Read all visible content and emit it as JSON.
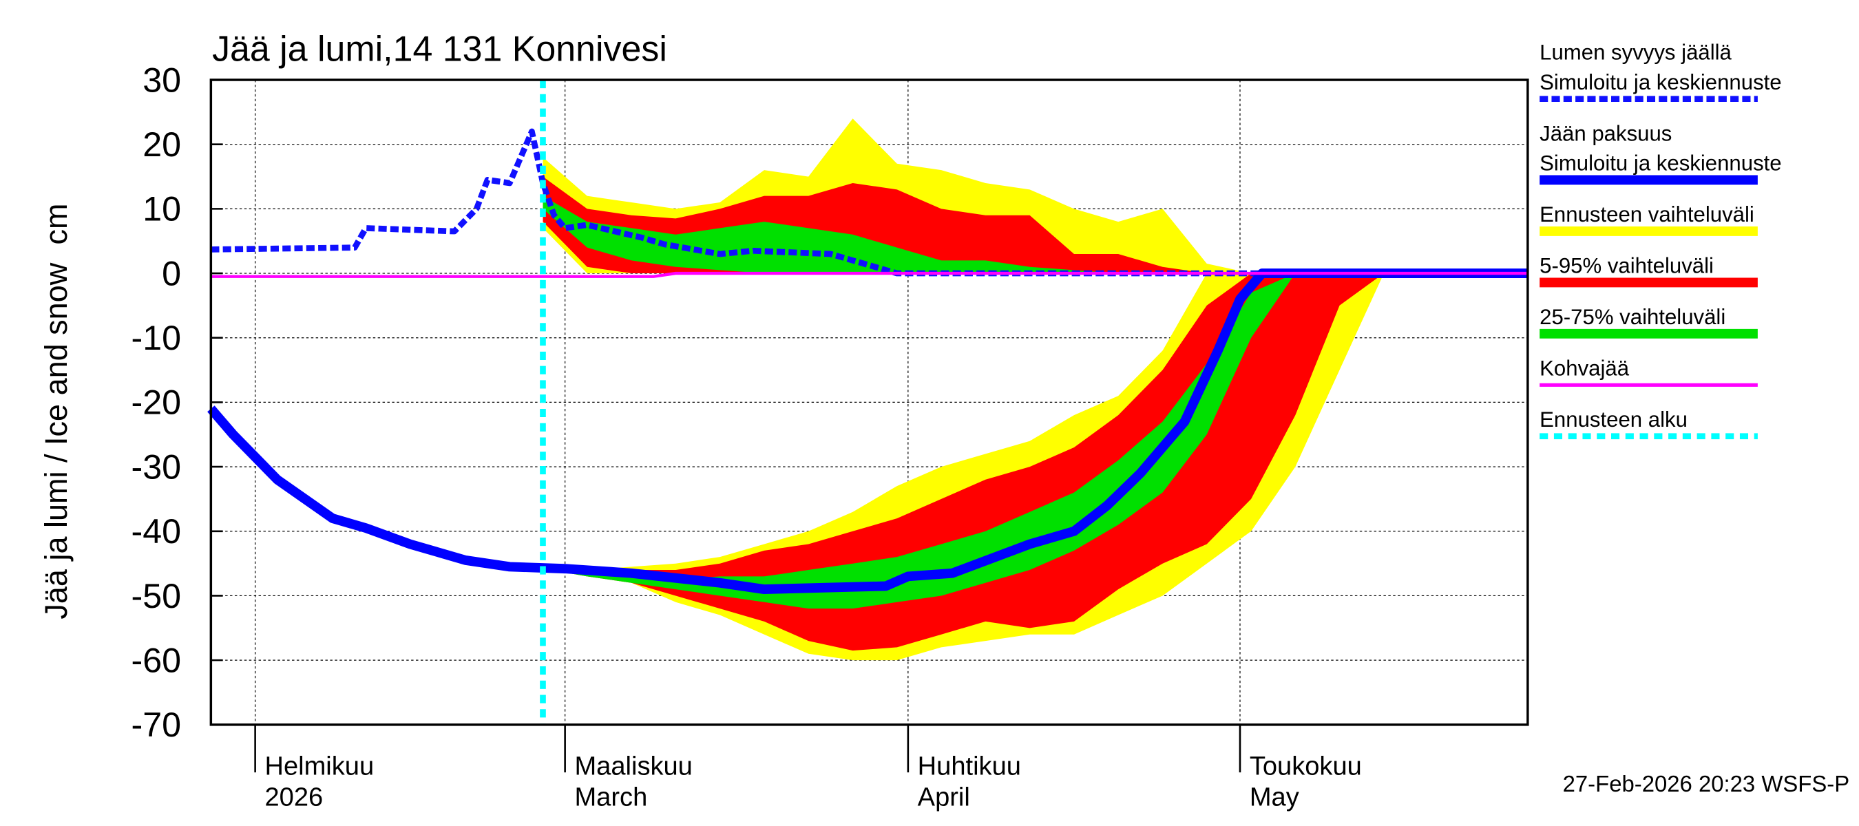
{
  "chart_data": {
    "type": "ice-snow",
    "title": "Jää ja lumi,14 131 Konnivesi",
    "ylabel": "Jää ja lumi / Ice and snow",
    "yunit": "cm",
    "timestamp": "27-Feb-2026 20:23 WSFS-P",
    "xlim": [
      28,
      147
    ],
    "xticks": [
      {
        "value": 32,
        "label": [
          "Helmikuu",
          "2026"
        ]
      },
      {
        "value": 60,
        "label": [
          "Maaliskuu",
          "March"
        ]
      },
      {
        "value": 91,
        "label": [
          "Huhtikuu",
          "April"
        ]
      },
      {
        "value": 121,
        "label": [
          "Toukokuu",
          "May"
        ]
      }
    ],
    "ylim": [
      -70,
      30
    ],
    "yticks": [
      30,
      20,
      10,
      0,
      -10,
      -20,
      -30,
      -40,
      -50,
      -60,
      -70
    ],
    "grid": true,
    "band_x": [
      58,
      62,
      66,
      70,
      74,
      78,
      82,
      86,
      90,
      94,
      98,
      102,
      106,
      110,
      114,
      118,
      122,
      126,
      130,
      134
    ],
    "series": [
      {
        "name": [
          "Lumen syvyys jäällä",
          "Simuloitu ja keskiennuste"
        ],
        "kind": "line",
        "style": "dashed",
        "color": "#1010ff",
        "x": [
          28,
          41,
          42,
          50,
          52,
          53,
          55,
          57,
          58,
          59,
          60,
          62,
          67,
          69,
          74,
          77,
          84,
          86,
          90,
          147
        ],
        "values": [
          3.7,
          4,
          7,
          6.5,
          10,
          14.5,
          14,
          22,
          14,
          9,
          7,
          7.5,
          5.5,
          4.5,
          3,
          3.5,
          3,
          2,
          0,
          0
        ]
      },
      {
        "name": [
          "Jään paksuus",
          "Simuloitu ja keskiennuste"
        ],
        "kind": "line",
        "style": "solid",
        "color": "#0000ff",
        "x": [
          28,
          30,
          34,
          39,
          42,
          46,
          51,
          55,
          60,
          66,
          74,
          78,
          89,
          91,
          95,
          102,
          106,
          109,
          112,
          116,
          119,
          121,
          123,
          147
        ],
        "values": [
          -21,
          -25,
          -32,
          -38,
          -39.5,
          -42,
          -44.5,
          -45.5,
          -45.8,
          -46.5,
          -48,
          -49,
          -48.5,
          -47,
          -46.5,
          -42,
          -40,
          -36,
          -31,
          -23,
          -12,
          -4,
          0,
          0
        ]
      },
      {
        "name": [
          "Ennusteen vaihteluväli"
        ],
        "kind": "band",
        "color": "#ffff00",
        "snow_high": [
          18,
          12,
          11,
          10,
          11,
          16,
          15,
          24,
          17,
          16,
          14,
          13,
          10,
          8,
          10,
          1.5,
          0,
          0,
          0,
          0
        ],
        "snow_low": [
          7,
          0,
          0,
          0,
          0,
          0,
          0,
          0,
          0,
          0,
          0,
          0,
          0,
          0,
          0,
          0,
          0,
          0,
          0,
          0
        ],
        "ice_high": [
          -45.8,
          -46,
          -45.5,
          -45,
          -44,
          -42,
          -40,
          -37,
          -33,
          -30,
          -28,
          -26,
          -22,
          -19,
          -12,
          0,
          0,
          0,
          0,
          0
        ],
        "ice_low": [
          -45.8,
          -47,
          -48,
          -51,
          -53,
          -56,
          -59,
          -60,
          -60,
          -58,
          -57,
          -56,
          -56,
          -53,
          -50,
          -45,
          -40,
          -30,
          -15,
          0
        ]
      },
      {
        "name": [
          "5-95% vaihteluväli"
        ],
        "kind": "band",
        "color": "#ff0000",
        "snow_high": [
          15,
          10,
          9,
          8.5,
          10,
          12,
          12,
          14,
          13,
          10,
          9,
          9,
          3,
          3,
          1,
          0,
          0,
          0,
          0,
          0
        ],
        "snow_low": [
          8,
          1,
          0,
          0,
          0,
          0,
          0,
          0,
          0,
          0,
          0,
          0,
          0,
          0,
          0,
          0,
          0,
          0,
          0,
          0
        ],
        "ice_high": [
          -45.8,
          -46.5,
          -46,
          -46,
          -45,
          -43,
          -42,
          -40,
          -38,
          -35,
          -32,
          -30,
          -27,
          -22,
          -15,
          -5,
          0,
          0,
          0,
          0
        ],
        "ice_low": [
          -45.8,
          -47,
          -48,
          -50,
          -52,
          -54,
          -57,
          -58.5,
          -58,
          -56,
          -54,
          -55,
          -54,
          -49,
          -45,
          -42,
          -35,
          -22,
          -5,
          0
        ]
      },
      {
        "name": [
          "25-75% vaihteluväli"
        ],
        "kind": "band",
        "color": "#00e000",
        "snow_high": [
          12,
          8,
          7,
          6,
          7,
          8,
          7,
          6,
          4,
          2,
          2,
          1,
          0.5,
          0,
          0,
          0,
          0,
          0,
          0,
          0
        ],
        "snow_low": [
          10,
          4,
          2,
          1,
          0.5,
          0,
          0,
          0,
          0,
          0,
          0,
          0,
          0,
          0,
          0,
          0,
          0,
          0,
          0,
          0
        ],
        "ice_high": [
          -45.8,
          -46.5,
          -47,
          -47.5,
          -47,
          -47,
          -46,
          -45,
          -44,
          -42,
          -40,
          -37,
          -34,
          -29,
          -23,
          -14,
          -3,
          0,
          0,
          0
        ],
        "ice_low": [
          -45.8,
          -47,
          -48,
          -49,
          -50,
          -51,
          -52,
          -52,
          -51,
          -50,
          -48,
          -46,
          -43,
          -39,
          -34,
          -25,
          -10,
          0,
          0,
          0
        ]
      },
      {
        "name": [
          "Kohvajää"
        ],
        "kind": "line",
        "style": "solid-thin",
        "color": "#ff00ff",
        "x": [
          28,
          68,
          70,
          147
        ],
        "values": [
          -0.5,
          -0.5,
          0,
          0
        ]
      },
      {
        "name": [
          "Ennusteen alku"
        ],
        "kind": "vline",
        "style": "dotted",
        "color": "#00ffff",
        "x_value": 58
      }
    ]
  }
}
